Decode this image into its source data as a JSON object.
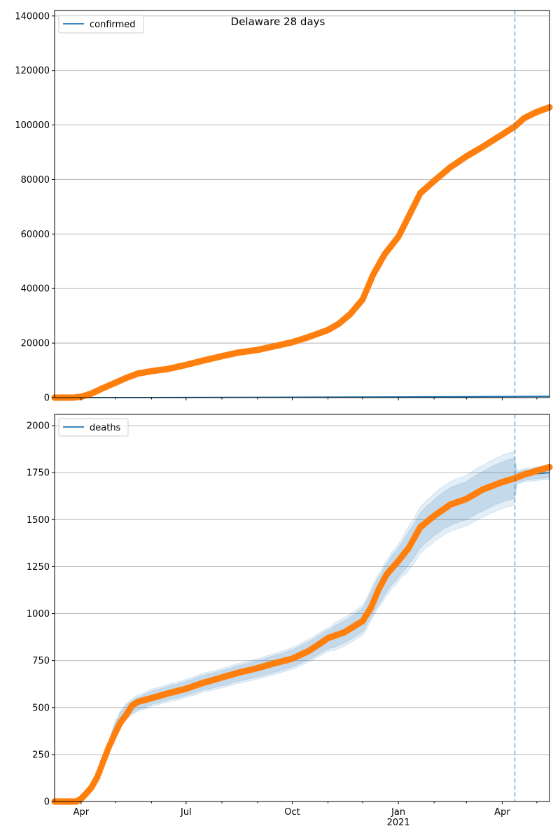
{
  "figure": {
    "title": "Delaware 28 days"
  },
  "chart_data": [
    {
      "type": "line",
      "panel": "top",
      "legend": {
        "entries": [
          "confirmed"
        ],
        "placement": "top-left"
      },
      "grid": {
        "y": true,
        "x": false
      },
      "ylim": [
        0,
        142000
      ],
      "yticks": [
        0,
        20000,
        40000,
        60000,
        80000,
        100000,
        120000,
        140000
      ],
      "xlim": [
        "2020-03-09",
        "2021-05-12"
      ],
      "forecast_start": "2021-04-12",
      "colors": {
        "observed": "#ff7f0e",
        "model": "#1f77b4",
        "forecast_line": "#1f77b4"
      },
      "series": [
        {
          "name": "confirmed",
          "role": "model",
          "x": [
            "2020-03-09",
            "2020-06-01",
            "2020-10-01",
            "2021-01-01",
            "2021-04-12",
            "2021-05-12"
          ],
          "y": [
            0,
            30,
            150,
            250,
            400,
            500
          ]
        },
        {
          "role": "observed",
          "x": [
            "2020-03-09",
            "2020-03-25",
            "2020-04-01",
            "2020-04-10",
            "2020-04-20",
            "2020-05-01",
            "2020-05-10",
            "2020-05-20",
            "2020-06-01",
            "2020-06-15",
            "2020-07-01",
            "2020-07-15",
            "2020-08-01",
            "2020-08-15",
            "2020-09-01",
            "2020-09-15",
            "2020-10-01",
            "2020-10-15",
            "2020-11-01",
            "2020-11-10",
            "2020-11-20",
            "2020-12-01",
            "2020-12-10",
            "2020-12-20",
            "2021-01-01",
            "2021-01-10",
            "2021-01-20",
            "2021-02-01",
            "2021-02-15",
            "2021-03-01",
            "2021-03-15",
            "2021-04-01",
            "2021-04-12",
            "2021-04-20",
            "2021-05-01",
            "2021-05-12"
          ],
          "y": [
            0,
            0,
            300,
            1500,
            3500,
            5500,
            7200,
            8800,
            9700,
            10500,
            12000,
            13500,
            15200,
            16500,
            17500,
            18800,
            20300,
            22200,
            24800,
            27000,
            30500,
            36000,
            45000,
            52500,
            59000,
            66500,
            75000,
            79500,
            84500,
            88500,
            92000,
            96500,
            99500,
            102500,
            104800,
            106500
          ]
        }
      ]
    },
    {
      "type": "line",
      "panel": "bottom",
      "legend": {
        "entries": [
          "deaths"
        ],
        "placement": "top-left"
      },
      "grid": {
        "y": true,
        "x": false
      },
      "ylim": [
        0,
        2060
      ],
      "yticks": [
        0,
        250,
        500,
        750,
        1000,
        1250,
        1500,
        1750,
        2000
      ],
      "xlim": [
        "2020-03-09",
        "2021-05-12"
      ],
      "xtick_labels": [
        "Apr",
        "Jul",
        "Oct",
        "Jan\n2021",
        "Apr"
      ],
      "xtick_dates": [
        "2020-04-01",
        "2020-07-01",
        "2020-10-01",
        "2021-01-01",
        "2021-04-01"
      ],
      "forecast_start": "2021-04-12",
      "colors": {
        "observed": "#ff7f0e",
        "model": "#1f77b4",
        "band": "#1f77b4"
      },
      "series": [
        {
          "name": "deaths",
          "role": "model",
          "x": [
            "2020-03-09",
            "2020-03-25",
            "2020-04-01",
            "2020-04-10",
            "2020-04-20",
            "2020-05-01",
            "2020-05-10",
            "2020-05-20",
            "2020-06-01",
            "2020-06-15",
            "2020-07-01",
            "2020-07-15",
            "2020-08-01",
            "2020-08-15",
            "2020-09-01",
            "2020-09-15",
            "2020-10-01",
            "2020-10-15",
            "2020-11-01",
            "2020-11-15",
            "2020-12-01",
            "2020-12-10",
            "2020-12-20",
            "2021-01-01",
            "2021-01-10",
            "2021-01-20",
            "2021-02-01",
            "2021-02-15",
            "2021-03-01",
            "2021-03-15",
            "2021-04-01",
            "2021-04-12",
            "2021-04-20",
            "2021-05-01",
            "2021-05-12"
          ],
          "y": [
            0,
            0,
            15,
            70,
            210,
            400,
            480,
            520,
            550,
            575,
            600,
            630,
            655,
            680,
            705,
            730,
            760,
            800,
            860,
            900,
            960,
            1060,
            1170,
            1270,
            1340,
            1440,
            1510,
            1570,
            1600,
            1650,
            1700,
            1720,
            1735,
            1745,
            1750
          ],
          "band_inner": [
            10,
            25,
            35,
            40,
            45
          ],
          "band_outer": [
            20,
            45,
            60,
            75,
            85
          ]
        },
        {
          "role": "observed",
          "x": [
            "2020-03-09",
            "2020-03-28",
            "2020-04-01",
            "2020-04-05",
            "2020-04-10",
            "2020-04-15",
            "2020-04-20",
            "2020-04-25",
            "2020-05-01",
            "2020-05-05",
            "2020-05-10",
            "2020-05-15",
            "2020-05-20",
            "2020-06-01",
            "2020-06-15",
            "2020-07-01",
            "2020-07-15",
            "2020-08-01",
            "2020-08-15",
            "2020-09-01",
            "2020-09-15",
            "2020-10-01",
            "2020-10-15",
            "2020-10-25",
            "2020-11-01",
            "2020-11-15",
            "2020-12-01",
            "2020-12-08",
            "2020-12-15",
            "2020-12-22",
            "2021-01-01",
            "2021-01-10",
            "2021-01-20",
            "2021-02-01",
            "2021-02-15",
            "2021-03-01",
            "2021-03-15",
            "2021-04-01",
            "2021-04-12",
            "2021-04-20",
            "2021-05-01",
            "2021-05-12"
          ],
          "y": [
            0,
            0,
            15,
            40,
            75,
            130,
            210,
            290,
            370,
            420,
            460,
            510,
            530,
            550,
            575,
            600,
            630,
            660,
            685,
            710,
            735,
            760,
            800,
            840,
            870,
            900,
            960,
            1030,
            1130,
            1210,
            1280,
            1350,
            1460,
            1520,
            1580,
            1610,
            1660,
            1700,
            1720,
            1740,
            1760,
            1780
          ]
        }
      ]
    }
  ]
}
